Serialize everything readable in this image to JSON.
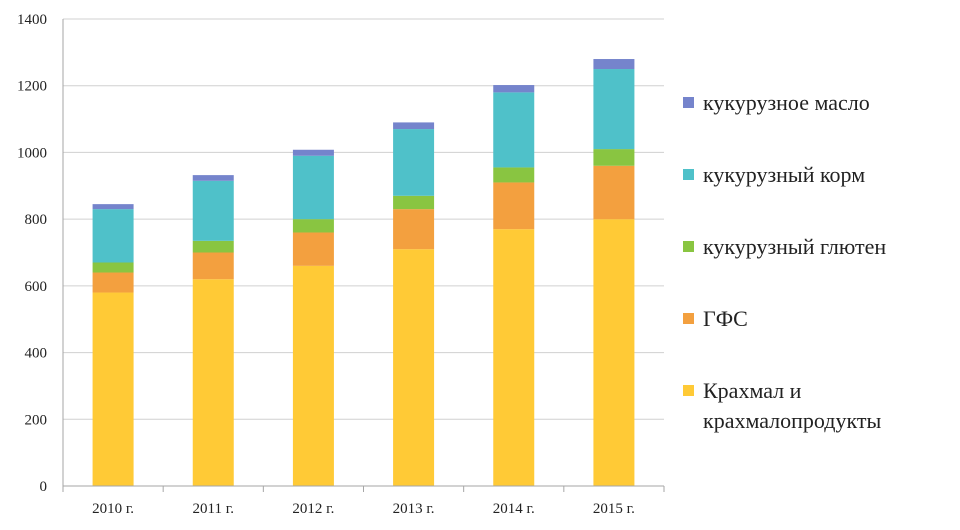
{
  "chart_data": {
    "type": "bar",
    "stacked": true,
    "title": "",
    "xlabel": "",
    "ylabel": "",
    "categories": [
      "2010 г.",
      "2011 г.",
      "2012 г.",
      "2013 г.",
      "2014 г.",
      "2015 г."
    ],
    "ylim": [
      0,
      1400
    ],
    "yticks": [
      0,
      200,
      400,
      600,
      800,
      1000,
      1200,
      1400
    ],
    "ytick_labels": [
      "0",
      "200",
      "400",
      "600",
      "800",
      "1000",
      "1200",
      "1400"
    ],
    "grid": true,
    "legend_position": "right",
    "series": [
      {
        "name": "Крахмал и крахмалопродукты",
        "color": "#FFCA36",
        "values": [
          580,
          620,
          660,
          710,
          770,
          800
        ]
      },
      {
        "name": "ГФС",
        "color": "#F3A03F",
        "values": [
          60,
          80,
          100,
          120,
          140,
          160
        ]
      },
      {
        "name": "кукурузный глютен",
        "color": "#89C541",
        "values": [
          30,
          35,
          40,
          40,
          45,
          50
        ]
      },
      {
        "name": "кукурузный корм",
        "color": "#4FC1C9",
        "values": [
          160,
          180,
          190,
          200,
          225,
          240
        ]
      },
      {
        "name": "кукурузное масло",
        "color": "#7584CC",
        "values": [
          15,
          17,
          18,
          20,
          22,
          30
        ]
      }
    ]
  }
}
